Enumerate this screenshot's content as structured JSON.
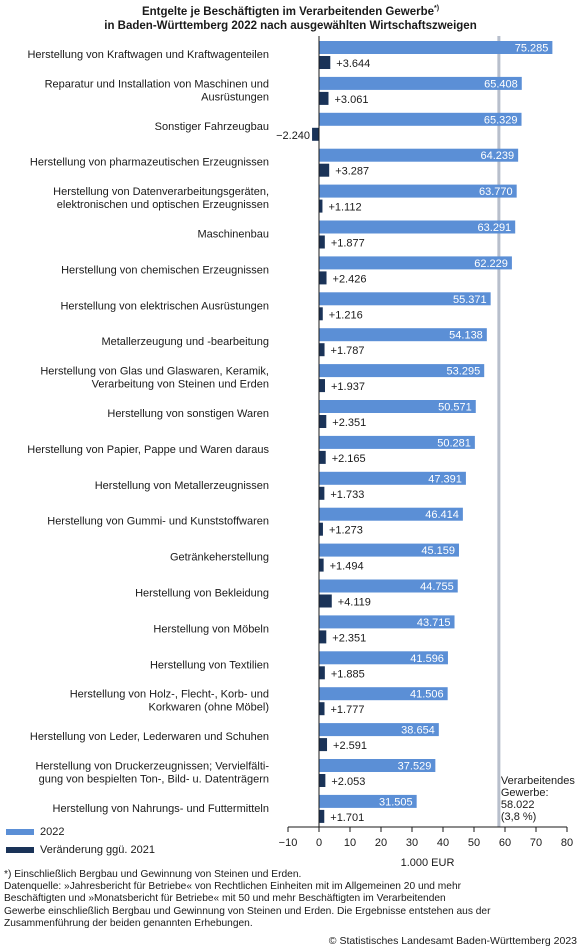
{
  "title": {
    "line1": "Entgelte je Beschäftigten im Verarbeitenden Gewerbe",
    "line1_marker": "*)",
    "line2": "in Baden-Württemberg 2022 nach ausgewählten Wirtschaftszweigen"
  },
  "footnote_star": "*)  Einschließlich Bergbau und Gewinnung von Steinen und Erden.",
  "source_lines": [
    "Datenquelle: »Jahresbericht für Betriebe« von Rechtlichen Einheiten mit im Allgemeinen 20 und mehr",
    "Beschäftigten und »Monatsbericht für Betriebe« mit 50 und mehr Beschäftigten im Verarbeitenden",
    "Gewerbe einschließlich Bergbau und Gewinnung von Steinen und Erden. Die Ergebnisse entstehen aus der",
    "Zusammenführung der beiden genannten Erhebungen."
  ],
  "copyright": "© Statistisches Landesamt Baden-Württemberg 2023",
  "chart_data": {
    "type": "bar",
    "orientation": "horizontal",
    "xlabel": "1.000 EUR",
    "xlim": [
      -10,
      80
    ],
    "xticks": [
      "−10",
      "0",
      "10",
      "20",
      "30",
      "40",
      "50",
      "60",
      "70",
      "80"
    ],
    "legend_position": "bottom-left",
    "colors": {
      "level": "#5b8fd6",
      "change": "#1a3358",
      "reference": "#b8bfcc"
    },
    "categories": [
      [
        "Herstellung von Kraftwagen und Kraftwagenteilen"
      ],
      [
        "Reparatur und Installation von Maschinen und",
        "Ausrüstungen"
      ],
      [
        "Sonstiger Fahrzeugbau"
      ],
      [
        "Herstellung von pharmazeutischen Erzeugnissen"
      ],
      [
        "Herstellung von Datenverarbeitungsgeräten,",
        "elektronischen und optischen Erzeugnissen"
      ],
      [
        "Maschinenbau"
      ],
      [
        "Herstellung von chemischen Erzeugnissen"
      ],
      [
        "Herstellung von elektrischen Ausrüstungen"
      ],
      [
        "Metallerzeugung und -bearbeitung"
      ],
      [
        "Herstellung von Glas und Glaswaren, Keramik,",
        "Verarbeitung von Steinen und Erden"
      ],
      [
        "Herstellung von sonstigen Waren"
      ],
      [
        "Herstellung von Papier, Pappe und Waren daraus"
      ],
      [
        "Herstellung von Metallerzeugnissen"
      ],
      [
        "Herstellung von Gummi- und Kunststoffwaren"
      ],
      [
        "Getränkeherstellung"
      ],
      [
        "Herstellung von Bekleidung"
      ],
      [
        "Herstellung von Möbeln"
      ],
      [
        "Herstellung von Textilien"
      ],
      [
        "Herstellung von Holz-, Flecht-, Korb- und",
        "Korkwaren (ohne Möbel)"
      ],
      [
        "Herstellung von Leder, Lederwaren und Schuhen"
      ],
      [
        "Herstellung von Druckerzeugnissen; Vervielfälti-",
        "gung von bespielten Ton-, Bild- u. Datenträgern"
      ],
      [
        "Herstellung von Nahrungs- und Futtermitteln"
      ]
    ],
    "series": [
      {
        "name": "2022",
        "values": [
          75.285,
          65.408,
          65.329,
          64.239,
          63.77,
          63.291,
          62.229,
          55.371,
          54.138,
          53.295,
          50.571,
          50.281,
          47.391,
          46.414,
          45.159,
          44.755,
          43.715,
          41.596,
          41.506,
          38.654,
          37.529,
          31.505
        ],
        "labels": [
          "75.285",
          "65.408",
          "65.329",
          "64.239",
          "63.770",
          "63.291",
          "62.229",
          "55.371",
          "54.138",
          "53.295",
          "50.571",
          "50.281",
          "47.391",
          "46.414",
          "45.159",
          "44.755",
          "43.715",
          "41.596",
          "41.506",
          "38.654",
          "37.529",
          "31.505"
        ]
      },
      {
        "name": "Veränderung ggü. 2021",
        "values": [
          3.644,
          3.061,
          -2.24,
          3.287,
          1.112,
          1.877,
          2.426,
          1.216,
          1.787,
          1.937,
          2.351,
          2.165,
          1.733,
          1.273,
          1.494,
          4.119,
          2.351,
          1.885,
          1.777,
          2.591,
          2.053,
          1.701
        ],
        "labels": [
          "+3.644",
          "+3.061",
          "−2.240",
          "+3.287",
          "+1.112",
          "+1.877",
          "+2.426",
          "+1.216",
          "+1.787",
          "+1.937",
          "+2.351",
          "+2.165",
          "+1.733",
          "+1.273",
          "+1.494",
          "+4.119",
          "+2.351",
          "+1.885",
          "+1.777",
          "+2.591",
          "+2.053",
          "+1.701"
        ]
      }
    ],
    "reference_line": {
      "value": 58.022,
      "label_lines": [
        "Verarbeitendes",
        "Gewerbe:",
        "58.022",
        "(3,8 %)"
      ]
    }
  }
}
